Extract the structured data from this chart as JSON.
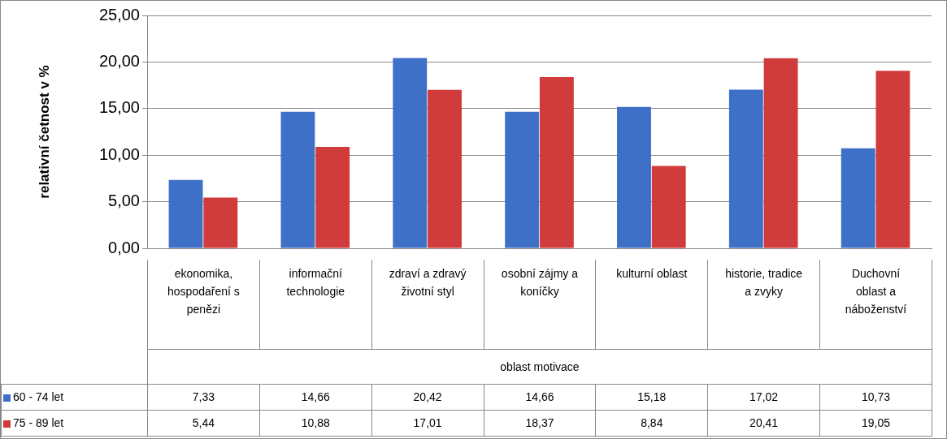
{
  "chart_data": {
    "type": "bar",
    "ylabel": "relativní četnost v %",
    "xlabel": "oblast motivace",
    "categories": [
      "ekonomika, hospodaření s penězi",
      "informační technologie",
      "zdraví a zdravý životní styl",
      "osobní zájmy a koníčky",
      "kulturní oblast",
      "historie, tradice a zvyky",
      "Duchovní oblast a náboženství"
    ],
    "series": [
      {
        "name": "60 - 74 let",
        "color": "#3f70c8",
        "values": [
          7.33,
          14.66,
          20.42,
          14.66,
          15.18,
          17.02,
          10.73
        ],
        "value_labels": [
          "7,33",
          "14,66",
          "20,42",
          "14,66",
          "15,18",
          "17,02",
          "10,73"
        ]
      },
      {
        "name": "75 - 89 let",
        "color": "#d03b3b",
        "values": [
          5.44,
          10.88,
          17.01,
          18.37,
          8.84,
          20.41,
          19.05
        ],
        "value_labels": [
          "5,44",
          "10,88",
          "17,01",
          "18,37",
          "8,84",
          "20,41",
          "19,05"
        ]
      }
    ],
    "ylim": [
      0,
      25
    ],
    "yticks": [
      {
        "value": 0,
        "label": "0,00"
      },
      {
        "value": 5,
        "label": "5,00"
      },
      {
        "value": 10,
        "label": "10,00"
      },
      {
        "value": 15,
        "label": "15,00"
      },
      {
        "value": 20,
        "label": "20,00"
      },
      {
        "value": 25,
        "label": "25,00"
      }
    ],
    "grid": "y",
    "legend": "bottom left"
  }
}
